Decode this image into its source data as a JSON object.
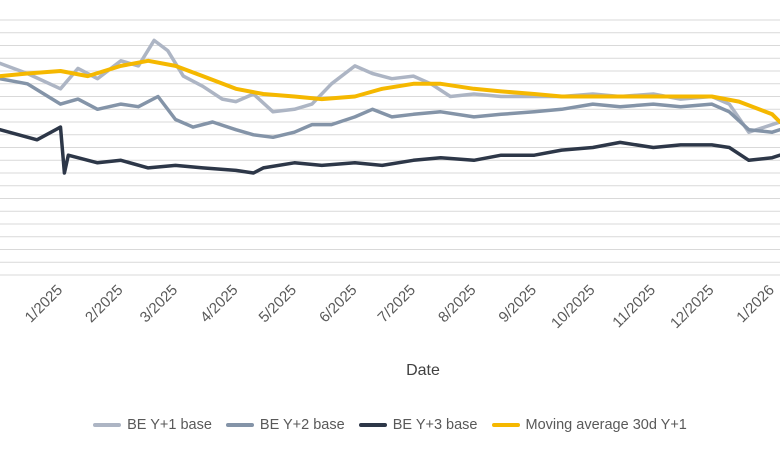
{
  "chart_data": {
    "type": "line",
    "xlabel": "Date",
    "ylabel": "",
    "grid": true,
    "legend_position": "bottom",
    "x_ticks": [
      "1/2025",
      "2/2025",
      "3/2025",
      "4/2025",
      "5/2025",
      "6/2025",
      "7/2025",
      "8/2025",
      "9/2025",
      "10/2025",
      "11/2025",
      "12/2025",
      "1/2026"
    ],
    "ylim": [
      0,
      100
    ],
    "series": [
      {
        "name": "BE Y+1 base",
        "color": "#adb5c4",
        "x": [
          "2024-12-01",
          "2024-12-15",
          "2025-01-01",
          "2025-01-10",
          "2025-01-20",
          "2025-02-01",
          "2025-02-10",
          "2025-02-18",
          "2025-02-25",
          "2025-03-05",
          "2025-03-15",
          "2025-03-25",
          "2025-04-01",
          "2025-04-10",
          "2025-04-20",
          "2025-05-01",
          "2025-05-10",
          "2025-05-20",
          "2025-06-01",
          "2025-06-10",
          "2025-06-20",
          "2025-07-01",
          "2025-07-10",
          "2025-07-20",
          "2025-08-01",
          "2025-08-15",
          "2025-09-01",
          "2025-09-15",
          "2025-10-01",
          "2025-10-15",
          "2025-11-01",
          "2025-11-15",
          "2025-12-01",
          "2025-12-10",
          "2025-12-20",
          "2026-01-01",
          "2026-01-05"
        ],
        "values": [
          83,
          79,
          73,
          81,
          77,
          84,
          82,
          92,
          88,
          78,
          74,
          69,
          68,
          71,
          64,
          65,
          67,
          75,
          82,
          79,
          77,
          78,
          75,
          70,
          71,
          70,
          70,
          70,
          71,
          70,
          71,
          69,
          70,
          67,
          56,
          59,
          60
        ]
      },
      {
        "name": "BE Y+2 base",
        "color": "#8494a8",
        "x": [
          "2024-12-01",
          "2024-12-15",
          "2025-01-01",
          "2025-01-10",
          "2025-01-20",
          "2025-02-01",
          "2025-02-10",
          "2025-02-20",
          "2025-03-01",
          "2025-03-10",
          "2025-03-20",
          "2025-04-01",
          "2025-04-10",
          "2025-04-20",
          "2025-05-01",
          "2025-05-10",
          "2025-05-20",
          "2025-06-01",
          "2025-06-10",
          "2025-06-20",
          "2025-07-01",
          "2025-07-15",
          "2025-08-01",
          "2025-08-15",
          "2025-09-01",
          "2025-09-15",
          "2025-10-01",
          "2025-10-15",
          "2025-11-01",
          "2025-11-15",
          "2025-12-01",
          "2025-12-10",
          "2025-12-20",
          "2026-01-01",
          "2026-01-05"
        ],
        "values": [
          77,
          75,
          67,
          69,
          65,
          67,
          66,
          70,
          61,
          58,
          60,
          57,
          55,
          54,
          56,
          59,
          59,
          62,
          65,
          62,
          63,
          64,
          62,
          63,
          64,
          65,
          67,
          66,
          67,
          66,
          67,
          64,
          57,
          56,
          57
        ]
      },
      {
        "name": "BE Y+3 base",
        "color": "#2d3748",
        "x": [
          "2024-12-01",
          "2024-12-20",
          "2025-01-01",
          "2025-01-03",
          "2025-01-05",
          "2025-01-20",
          "2025-02-01",
          "2025-02-15",
          "2025-03-01",
          "2025-03-15",
          "2025-04-01",
          "2025-04-10",
          "2025-04-15",
          "2025-05-01",
          "2025-05-15",
          "2025-06-01",
          "2025-06-15",
          "2025-07-01",
          "2025-07-15",
          "2025-08-01",
          "2025-08-15",
          "2025-09-01",
          "2025-09-15",
          "2025-10-01",
          "2025-10-15",
          "2025-11-01",
          "2025-11-15",
          "2025-12-01",
          "2025-12-10",
          "2025-12-20",
          "2026-01-01",
          "2026-01-05"
        ],
        "values": [
          57,
          53,
          58,
          40,
          47,
          44,
          45,
          42,
          43,
          42,
          41,
          40,
          42,
          44,
          43,
          44,
          43,
          45,
          46,
          45,
          47,
          47,
          49,
          50,
          52,
          50,
          51,
          51,
          50,
          45,
          46,
          47
        ]
      },
      {
        "name": "Moving average 30d Y+1",
        "color": "#f5b800",
        "x": [
          "2024-12-01",
          "2024-12-15",
          "2025-01-01",
          "2025-01-15",
          "2025-02-01",
          "2025-02-15",
          "2025-03-01",
          "2025-03-15",
          "2025-04-01",
          "2025-04-15",
          "2025-05-01",
          "2025-05-15",
          "2025-06-01",
          "2025-06-15",
          "2025-07-01",
          "2025-07-15",
          "2025-08-01",
          "2025-08-15",
          "2025-09-01",
          "2025-09-15",
          "2025-10-01",
          "2025-10-15",
          "2025-11-01",
          "2025-11-15",
          "2025-12-01",
          "2025-12-15",
          "2026-01-01",
          "2026-01-05"
        ],
        "values": [
          78,
          79,
          80,
          78,
          82,
          84,
          82,
          78,
          73,
          71,
          70,
          69,
          70,
          73,
          75,
          75,
          73,
          72,
          71,
          70,
          70,
          70,
          70,
          70,
          70,
          68,
          63,
          60
        ]
      }
    ]
  }
}
